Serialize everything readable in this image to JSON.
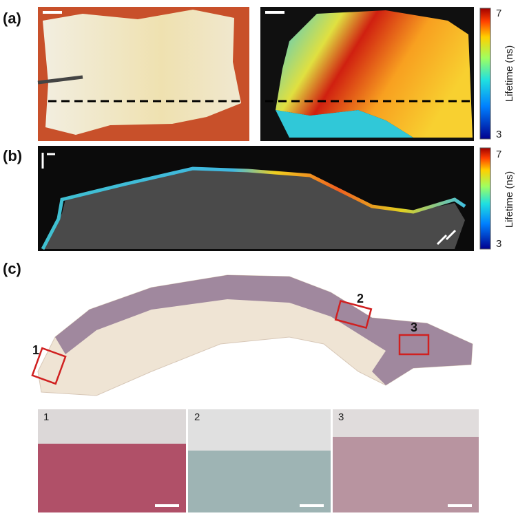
{
  "panels": {
    "a": {
      "label": "(a)"
    },
    "b": {
      "label": "(b)"
    },
    "c": {
      "label": "(c)",
      "regions": [
        "1",
        "2",
        "3"
      ],
      "insets": [
        "1",
        "2",
        "3"
      ]
    }
  },
  "colorbars": [
    {
      "max": 7,
      "min": 3,
      "label": "Lifetime (ns)"
    },
    {
      "max": 7,
      "min": 3,
      "label": "Lifetime (ns)"
    }
  ]
}
